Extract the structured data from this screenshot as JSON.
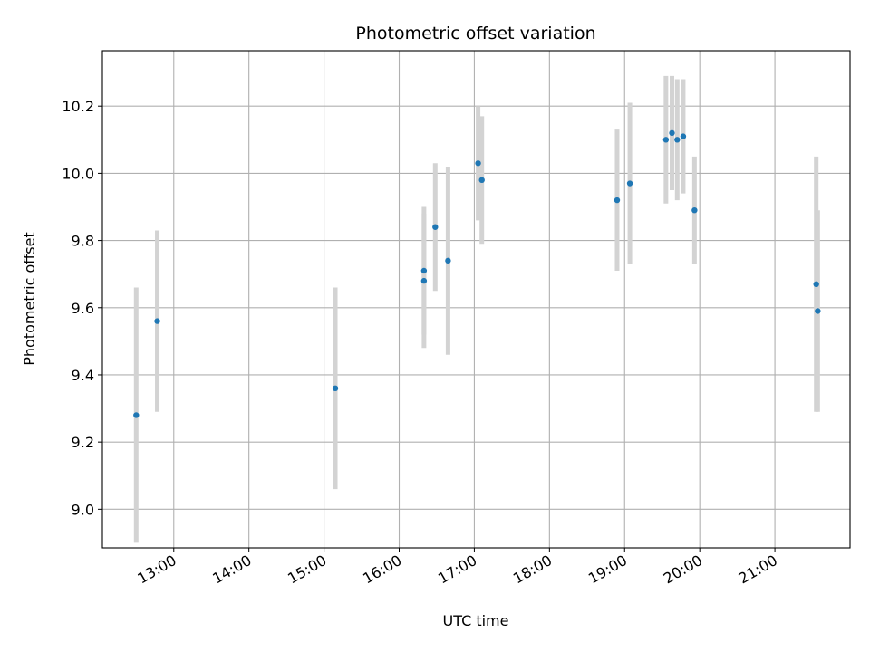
{
  "chart_data": {
    "type": "scatter",
    "title": "Photometric offset variation",
    "xlabel": "UTC time",
    "ylabel": "Photometric offset",
    "x_unit": "hours (UTC)",
    "xlim": [
      12.05,
      22.0
    ],
    "ylim": [
      8.885,
      10.365
    ],
    "x_ticks": [
      {
        "value": 13,
        "label": "13:00"
      },
      {
        "value": 14,
        "label": "14:00"
      },
      {
        "value": 15,
        "label": "15:00"
      },
      {
        "value": 16,
        "label": "16:00"
      },
      {
        "value": 17,
        "label": "17:00"
      },
      {
        "value": 18,
        "label": "18:00"
      },
      {
        "value": 19,
        "label": "19:00"
      },
      {
        "value": 20,
        "label": "20:00"
      },
      {
        "value": 21,
        "label": "21:00"
      }
    ],
    "y_ticks": [
      {
        "value": 9.0,
        "label": "9.0"
      },
      {
        "value": 9.2,
        "label": "9.2"
      },
      {
        "value": 9.4,
        "label": "9.4"
      },
      {
        "value": 9.6,
        "label": "9.6"
      },
      {
        "value": 9.8,
        "label": "9.8"
      },
      {
        "value": 10.0,
        "label": "10.0"
      },
      {
        "value": 10.2,
        "label": "10.2"
      }
    ],
    "grid": true,
    "series": [
      {
        "marker_color": "#1f77b4",
        "errorbar_color": "#d3d3d3",
        "points": [
          {
            "x": 12.5,
            "y": 9.28,
            "err": 0.38
          },
          {
            "x": 12.78,
            "y": 9.56,
            "err": 0.27
          },
          {
            "x": 15.15,
            "y": 9.36,
            "err": 0.3
          },
          {
            "x": 16.33,
            "y": 9.71,
            "err": 0.19
          },
          {
            "x": 16.33,
            "y": 9.68,
            "err": 0.2
          },
          {
            "x": 16.48,
            "y": 9.84,
            "err": 0.19
          },
          {
            "x": 16.65,
            "y": 9.74,
            "err": 0.28
          },
          {
            "x": 17.05,
            "y": 10.03,
            "err": 0.17
          },
          {
            "x": 17.1,
            "y": 9.98,
            "err": 0.19
          },
          {
            "x": 18.9,
            "y": 9.92,
            "err": 0.21
          },
          {
            "x": 19.07,
            "y": 9.97,
            "err": 0.24
          },
          {
            "x": 19.55,
            "y": 10.1,
            "err": 0.19
          },
          {
            "x": 19.63,
            "y": 10.12,
            "err": 0.17
          },
          {
            "x": 19.7,
            "y": 10.1,
            "err": 0.18
          },
          {
            "x": 19.78,
            "y": 10.11,
            "err": 0.17
          },
          {
            "x": 19.93,
            "y": 9.89,
            "err": 0.16
          },
          {
            "x": 21.55,
            "y": 9.67,
            "err": 0.38
          },
          {
            "x": 21.57,
            "y": 9.59,
            "err": 0.3
          }
        ]
      }
    ]
  }
}
